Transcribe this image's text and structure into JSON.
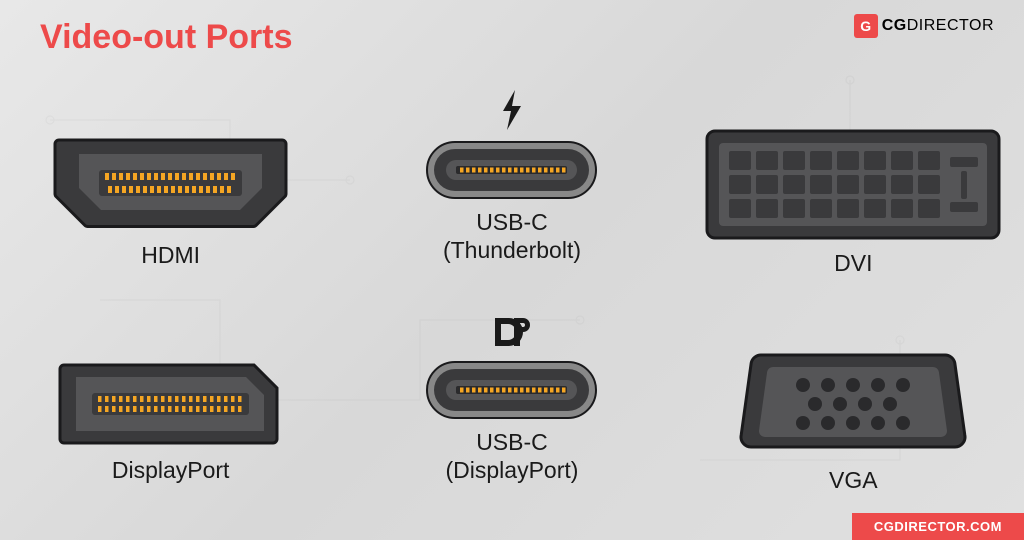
{
  "title": "Video-out Ports",
  "title_color": "#ed4a4a",
  "logo": {
    "badge": "G",
    "text_bold": "CG",
    "text_light": "DIRECTOR"
  },
  "footer": {
    "text": "CGDIRECTOR.COM",
    "bg": "#ed4a4a"
  },
  "colors": {
    "port_body": "#3a3a3c",
    "port_inner": "#555557",
    "port_dark": "#2a2a2c",
    "port_outline": "#1a1a1c",
    "pin": "#f5a623",
    "pin_dot": "#4a4a4c",
    "label": "#1a1a1a"
  },
  "ports": {
    "hdmi": {
      "label": "HDMI"
    },
    "usbc_tb": {
      "label": "USB-C\n(Thunderbolt)",
      "symbol": "thunderbolt"
    },
    "dvi": {
      "label": "DVI"
    },
    "displayport": {
      "label": "DisplayPort"
    },
    "usbc_dp": {
      "label": "USB-C\n(DisplayPort)",
      "symbol": "dp"
    },
    "vga": {
      "label": "VGA"
    }
  }
}
